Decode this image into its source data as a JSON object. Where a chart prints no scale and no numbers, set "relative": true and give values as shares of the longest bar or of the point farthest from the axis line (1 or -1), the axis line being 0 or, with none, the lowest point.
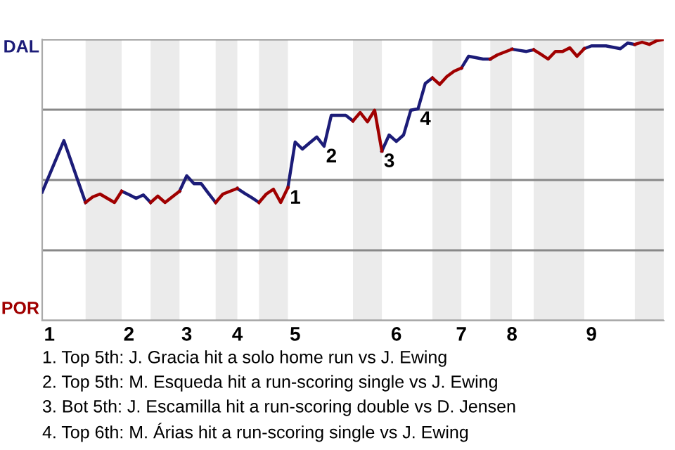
{
  "chart_data": {
    "type": "line",
    "relative": true,
    "categories": [
      null,
      "1",
      null,
      null,
      null,
      null,
      null,
      null,
      null,
      null,
      null,
      null,
      "2",
      null,
      null,
      null,
      null,
      null,
      null,
      null,
      "3",
      null,
      null,
      null,
      null,
      null,
      null,
      "4",
      null,
      null,
      null,
      null,
      null,
      null,
      null,
      "5",
      null,
      null,
      null,
      null,
      null,
      null,
      null,
      null,
      null,
      null,
      null,
      null,
      null,
      "6",
      null,
      null,
      null,
      null,
      null,
      null,
      null,
      null,
      "7",
      null,
      null,
      null,
      null,
      null,
      null,
      "8",
      null,
      null,
      null,
      null,
      null,
      null,
      null,
      null,
      null,
      null,
      "9",
      null,
      null,
      null,
      null,
      null,
      null,
      null,
      null,
      null,
      null
    ],
    "grid": "y",
    "legend": false,
    "marker": "none",
    "line_style": "solid",
    "series": [
      {
        "color": "#1c1c78",
        "values": [
          0.457,
          0.518,
          0.579,
          0.64,
          0.567,
          0.493,
          0.42,
          null,
          null,
          null,
          null,
          0.46,
          0.448,
          0.435,
          0.447,
          0.42,
          null,
          null,
          null,
          0.46,
          0.515,
          0.487,
          0.487,
          0.453,
          0.42,
          null,
          null,
          0.47,
          0.453,
          0.437,
          0.42,
          null,
          null,
          null,
          0.473,
          0.635,
          0.61,
          0.632,
          0.653,
          0.62,
          0.73,
          0.73,
          0.73,
          0.71,
          null,
          null,
          null,
          0.603,
          0.66,
          0.637,
          0.66,
          0.748,
          0.753,
          0.843,
          0.863,
          null,
          null,
          null,
          0.898,
          0.94,
          0.935,
          0.93,
          0.93,
          null,
          null,
          0.965,
          0.961,
          0.957,
          0.963,
          null,
          null,
          null,
          null,
          null,
          null,
          0.967,
          0.977,
          0.977,
          0.977,
          0.972,
          0.967,
          0.987,
          0.982,
          null,
          null,
          null,
          null
        ]
      },
      {
        "color": "#a00000",
        "values": [
          null,
          null,
          null,
          null,
          null,
          null,
          0.42,
          0.44,
          0.45,
          0.435,
          0.42,
          0.46,
          null,
          null,
          null,
          0.42,
          0.443,
          0.42,
          0.44,
          0.46,
          null,
          null,
          null,
          null,
          0.42,
          0.45,
          0.46,
          0.47,
          null,
          null,
          0.42,
          0.45,
          0.467,
          0.42,
          0.473,
          null,
          null,
          null,
          null,
          null,
          null,
          null,
          null,
          0.71,
          0.74,
          0.707,
          0.748,
          0.603,
          null,
          null,
          null,
          null,
          null,
          null,
          0.863,
          0.84,
          0.868,
          0.887,
          0.898,
          null,
          null,
          null,
          0.93,
          0.945,
          0.955,
          0.965,
          null,
          null,
          0.963,
          0.947,
          0.93,
          0.957,
          0.957,
          0.97,
          0.94,
          0.967,
          null,
          null,
          null,
          null,
          null,
          null,
          0.982,
          0.99,
          0.982,
          0.995,
          1
        ]
      }
    ],
    "annotations": [
      {
        "text": "1",
        "y": 0.473
      },
      {
        "text": "2",
        "y": 0.62
      },
      {
        "text": "3",
        "y": 0.603
      },
      {
        "text": "4",
        "y": 0.753
      },
      "DAL",
      "POR",
      "1. Top 5th: J. Gracia hit a solo home run vs J. Ewing",
      "2. Top 5th: M. Esqueda hit a run-scoring single vs J. Ewing",
      "3. Bot 5th: J. Escamilla hit a run-scoring double vs D. Jensen",
      "4. Top 6th: M. Árias hit a run-scoring single vs J. Ewing"
    ]
  }
}
